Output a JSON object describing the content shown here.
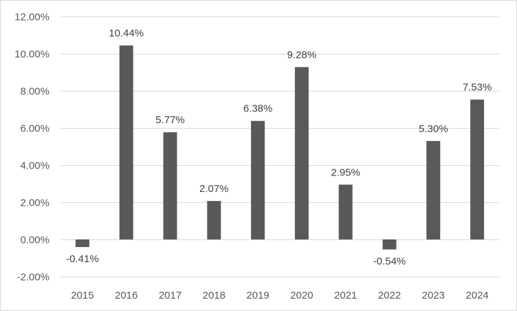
{
  "chart_data": {
    "type": "bar",
    "categories": [
      "2015",
      "2016",
      "2017",
      "2018",
      "2019",
      "2020",
      "2021",
      "2022",
      "2023",
      "2024"
    ],
    "values": [
      -0.41,
      10.44,
      5.77,
      2.07,
      6.38,
      9.28,
      2.95,
      -0.54,
      5.3,
      7.53
    ],
    "data_labels": [
      "-0.41%",
      "10.44%",
      "5.77%",
      "2.07%",
      "6.38%",
      "9.28%",
      "2.95%",
      "-0.54%",
      "5.30%",
      "7.53%"
    ],
    "ylim": [
      -2,
      12
    ],
    "y_ticks": [
      -2,
      0,
      2,
      4,
      6,
      8,
      10,
      12
    ],
    "y_tick_labels": [
      "-2.00%",
      "0.00%",
      "2.00%",
      "4.00%",
      "6.00%",
      "8.00%",
      "10.00%",
      "12.00%"
    ],
    "title": "",
    "xlabel": "",
    "ylabel": "",
    "grid": true,
    "legend": "none",
    "bar_color": "#595959",
    "grid_color": "#d9d9d9"
  }
}
